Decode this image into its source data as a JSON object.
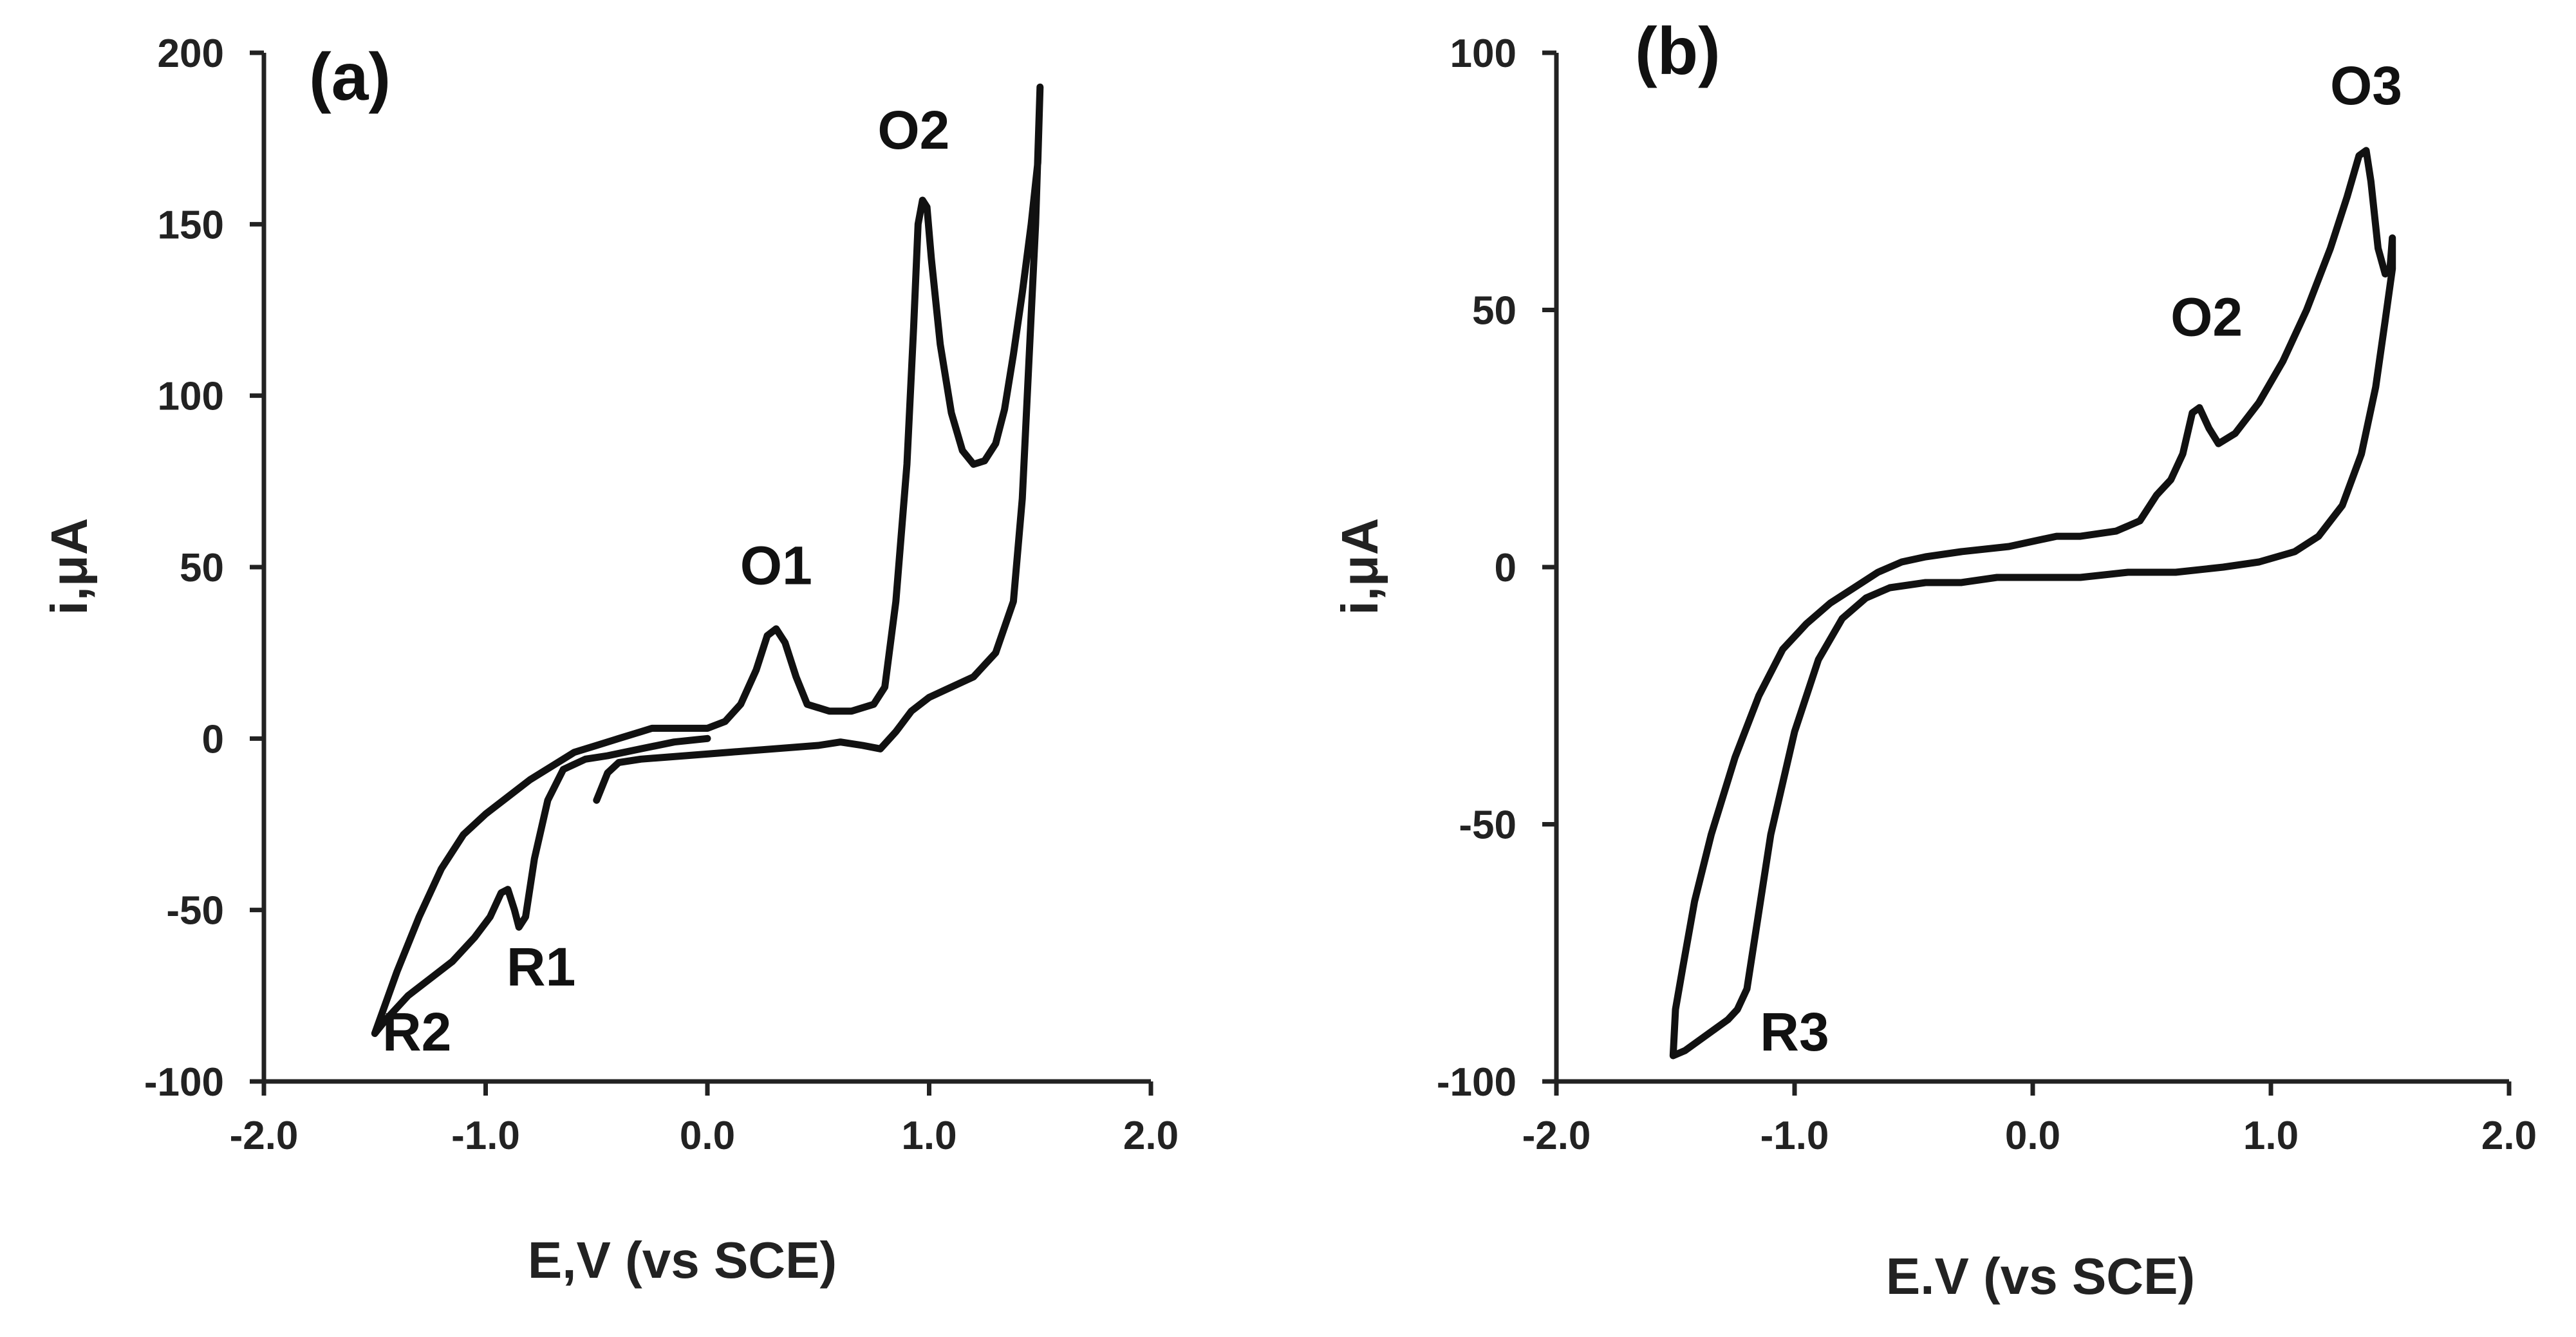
{
  "colors": {
    "curve": "#111111",
    "axis": "#222222",
    "background": "#ffffff"
  },
  "chart_data": [
    {
      "type": "line",
      "panel_label": "(a)",
      "xlabel": "E,V (vs SCE)",
      "ylabel": "i,μA",
      "xlim": [
        -2.0,
        2.0
      ],
      "ylim": [
        -100,
        200
      ],
      "x_ticks": [
        -2.0,
        -1.0,
        0.0,
        1.0,
        2.0
      ],
      "x_tick_labels": [
        "-2.0",
        "-1.0",
        "0.0",
        "1.0",
        "2.0"
      ],
      "y_ticks": [
        200,
        150,
        100,
        50,
        0,
        -50,
        -100
      ],
      "y_tick_labels": [
        "200",
        "150",
        "100",
        "50",
        "0",
        "-50",
        "-100"
      ],
      "annotations": [
        {
          "text": "O1",
          "x": 0.31,
          "y": 45
        },
        {
          "text": "O2",
          "x": 0.93,
          "y": 172
        },
        {
          "text": "R1",
          "x": -0.75,
          "y": -72
        },
        {
          "text": "R2",
          "x": -1.31,
          "y": -91
        }
      ],
      "series": [
        {
          "name": "cv-a",
          "points": [
            [
              -0.5,
              -18
            ],
            [
              -0.45,
              -10
            ],
            [
              -0.4,
              -7
            ],
            [
              -0.3,
              -6
            ],
            [
              -0.1,
              -5
            ],
            [
              0.1,
              -4
            ],
            [
              0.3,
              -3
            ],
            [
              0.5,
              -2
            ],
            [
              0.6,
              -1
            ],
            [
              0.7,
              -2
            ],
            [
              0.78,
              -3
            ],
            [
              0.85,
              2
            ],
            [
              0.92,
              8
            ],
            [
              1.0,
              12
            ],
            [
              1.1,
              15
            ],
            [
              1.2,
              18
            ],
            [
              1.3,
              25
            ],
            [
              1.38,
              40
            ],
            [
              1.42,
              70
            ],
            [
              1.45,
              110
            ],
            [
              1.48,
              150
            ],
            [
              1.5,
              190
            ],
            [
              1.49,
              168
            ],
            [
              1.46,
              150
            ],
            [
              1.42,
              130
            ],
            [
              1.38,
              112
            ],
            [
              1.34,
              96
            ],
            [
              1.3,
              86
            ],
            [
              1.25,
              81
            ],
            [
              1.2,
              80
            ],
            [
              1.15,
              84
            ],
            [
              1.1,
              95
            ],
            [
              1.05,
              115
            ],
            [
              1.01,
              140
            ],
            [
              0.99,
              155
            ],
            [
              0.97,
              157
            ],
            [
              0.95,
              150
            ],
            [
              0.93,
              120
            ],
            [
              0.9,
              80
            ],
            [
              0.85,
              40
            ],
            [
              0.8,
              15
            ],
            [
              0.75,
              10
            ],
            [
              0.65,
              8
            ],
            [
              0.55,
              8
            ],
            [
              0.45,
              10
            ],
            [
              0.4,
              18
            ],
            [
              0.35,
              28
            ],
            [
              0.31,
              32
            ],
            [
              0.27,
              30
            ],
            [
              0.22,
              20
            ],
            [
              0.15,
              10
            ],
            [
              0.08,
              5
            ],
            [
              0.0,
              3
            ],
            [
              -0.1,
              3
            ],
            [
              -0.25,
              3
            ],
            [
              -0.3,
              2
            ],
            [
              -0.4,
              0
            ],
            [
              -0.5,
              -2
            ],
            [
              -0.6,
              -4
            ],
            [
              -0.7,
              -8
            ],
            [
              -0.8,
              -12
            ],
            [
              -0.9,
              -17
            ],
            [
              -1.0,
              -22
            ],
            [
              -1.1,
              -28
            ],
            [
              -1.2,
              -38
            ],
            [
              -1.3,
              -52
            ],
            [
              -1.4,
              -68
            ],
            [
              -1.5,
              -86
            ],
            [
              -1.45,
              -82
            ],
            [
              -1.35,
              -75
            ],
            [
              -1.25,
              -70
            ],
            [
              -1.15,
              -65
            ],
            [
              -1.05,
              -58
            ],
            [
              -0.98,
              -52
            ],
            [
              -0.93,
              -45
            ],
            [
              -0.9,
              -44
            ],
            [
              -0.87,
              -50
            ],
            [
              -0.85,
              -55
            ],
            [
              -0.82,
              -52
            ],
            [
              -0.78,
              -35
            ],
            [
              -0.72,
              -18
            ],
            [
              -0.65,
              -9
            ],
            [
              -0.55,
              -6
            ],
            [
              -0.45,
              -5
            ],
            [
              -0.3,
              -3
            ],
            [
              -0.15,
              -1
            ],
            [
              0.0,
              0
            ]
          ]
        }
      ]
    },
    {
      "type": "line",
      "panel_label": "(b)",
      "xlabel": "E.V (vs SCE)",
      "ylabel": "i,μA",
      "xlim": [
        -2.0,
        2.0
      ],
      "ylim": [
        -100,
        100
      ],
      "x_ticks": [
        -2.0,
        -1.0,
        0.0,
        1.0,
        2.0
      ],
      "x_tick_labels": [
        "-2.0",
        "-1.0",
        "0.0",
        "1.0",
        "2.0"
      ],
      "y_ticks": [
        100,
        50,
        0,
        -50,
        -100
      ],
      "y_tick_labels": [
        "100",
        "50",
        "0",
        "-50",
        "-100"
      ],
      "annotations": [
        {
          "text": "O2",
          "x": 0.73,
          "y": 45
        },
        {
          "text": "O3",
          "x": 1.4,
          "y": 90
        },
        {
          "text": "R3",
          "x": -1.0,
          "y": -94
        }
      ],
      "series": [
        {
          "name": "cv-b",
          "points": [
            [
              0.0,
              -2
            ],
            [
              0.2,
              -2
            ],
            [
              0.4,
              -1
            ],
            [
              0.6,
              -1
            ],
            [
              0.8,
              0
            ],
            [
              0.95,
              1
            ],
            [
              1.1,
              3
            ],
            [
              1.2,
              6
            ],
            [
              1.3,
              12
            ],
            [
              1.38,
              22
            ],
            [
              1.44,
              35
            ],
            [
              1.48,
              48
            ],
            [
              1.51,
              58
            ],
            [
              1.51,
              64
            ],
            [
              1.5,
              58
            ],
            [
              1.48,
              57
            ],
            [
              1.45,
              62
            ],
            [
              1.42,
              75
            ],
            [
              1.4,
              81
            ],
            [
              1.37,
              80
            ],
            [
              1.32,
              72
            ],
            [
              1.25,
              62
            ],
            [
              1.15,
              50
            ],
            [
              1.05,
              40
            ],
            [
              0.95,
              32
            ],
            [
              0.85,
              26
            ],
            [
              0.78,
              24
            ],
            [
              0.74,
              27
            ],
            [
              0.7,
              31
            ],
            [
              0.67,
              30
            ],
            [
              0.63,
              22
            ],
            [
              0.58,
              17
            ],
            [
              0.52,
              14
            ],
            [
              0.45,
              9
            ],
            [
              0.35,
              7
            ],
            [
              0.2,
              6
            ],
            [
              0.1,
              6
            ],
            [
              0.0,
              5
            ],
            [
              -0.1,
              4
            ],
            [
              -0.3,
              3
            ],
            [
              -0.45,
              2
            ],
            [
              -0.55,
              1
            ],
            [
              -0.65,
              -1
            ],
            [
              -0.75,
              -4
            ],
            [
              -0.85,
              -7
            ],
            [
              -0.95,
              -11
            ],
            [
              -1.05,
              -16
            ],
            [
              -1.15,
              -25
            ],
            [
              -1.25,
              -37
            ],
            [
              -1.35,
              -52
            ],
            [
              -1.42,
              -65
            ],
            [
              -1.47,
              -78
            ],
            [
              -1.5,
              -86
            ],
            [
              -1.51,
              -95
            ],
            [
              -1.46,
              -94
            ],
            [
              -1.4,
              -92
            ],
            [
              -1.34,
              -90
            ],
            [
              -1.28,
              -88
            ],
            [
              -1.24,
              -86
            ],
            [
              -1.2,
              -82
            ],
            [
              -1.15,
              -67
            ],
            [
              -1.1,
              -52
            ],
            [
              -1.0,
              -32
            ],
            [
              -0.9,
              -18
            ],
            [
              -0.8,
              -10
            ],
            [
              -0.7,
              -6
            ],
            [
              -0.6,
              -4
            ],
            [
              -0.45,
              -3
            ],
            [
              -0.3,
              -3
            ],
            [
              -0.15,
              -2
            ],
            [
              0.0,
              -2
            ]
          ]
        }
      ]
    }
  ]
}
